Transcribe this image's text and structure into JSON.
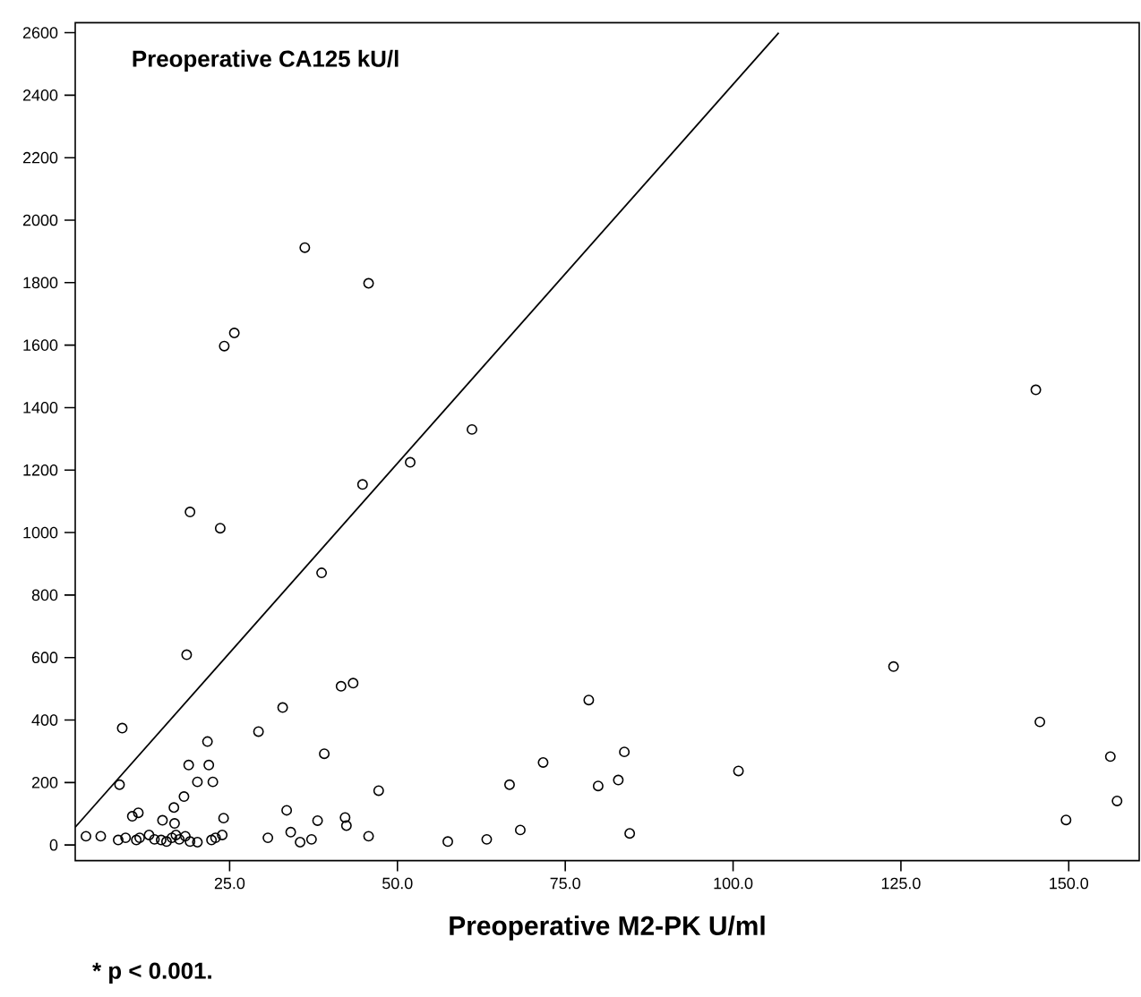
{
  "chart_data": {
    "type": "scatter",
    "ylabel": "Preoperative CA125 kU/l",
    "xlabel": "Preoperative M2-PK U/ml",
    "annotations": [
      "* p < 0.001."
    ],
    "marker": "circle",
    "xlim": [
      2,
      160.5
    ],
    "ylim": [
      -50,
      2632
    ],
    "xticks": [
      {
        "value": 25,
        "label": "25.0"
      },
      {
        "value": 50,
        "label": "50.0"
      },
      {
        "value": 75,
        "label": "75.0"
      },
      {
        "value": 100,
        "label": "100.0"
      },
      {
        "value": 125,
        "label": "125.0"
      },
      {
        "value": 150,
        "label": "150.0"
      }
    ],
    "yticks": [
      0,
      200,
      400,
      600,
      800,
      1000,
      1200,
      1400,
      1600,
      1800,
      2000,
      2200,
      2400,
      2600
    ],
    "series": [
      {
        "color": "#000000",
        "x": [
          36.2,
          45.7,
          24.2,
          25.7,
          61.1,
          51.9,
          44.8,
          19.1,
          23.6,
          38.7,
          145.1,
          18.6,
          9.0,
          8.6,
          21.7,
          18.9,
          21.9,
          20.2,
          22.5,
          18.2,
          16.7,
          10.5,
          11.4,
          32.9,
          29.3,
          39.1,
          41.6,
          43.4,
          47.2,
          33.5,
          24.1,
          38.1,
          42.2,
          15.0,
          123.9,
          78.5,
          145.7,
          83.8,
          71.7,
          156.2,
          66.7,
          79.9,
          82.9,
          100.8,
          157.2,
          149.6,
          3.6,
          5.8,
          42.4,
          30.7,
          34.1,
          35.5,
          37.2,
          45.7,
          57.5,
          63.3,
          68.3,
          84.6,
          8.4,
          9.5,
          11.1,
          11.6,
          13.0,
          13.8,
          14.8,
          15.6,
          16.4,
          17.0,
          17.5,
          18.4,
          19.1,
          20.2,
          22.3,
          22.9,
          23.9,
          16.8
        ],
        "values": [
          1912,
          1798,
          1597,
          1639,
          1330,
          1225,
          1154,
          1066,
          1014,
          871,
          1457,
          609,
          374,
          193,
          331,
          256,
          256,
          202,
          202,
          155,
          120,
          92,
          103,
          440,
          363,
          292,
          508,
          518,
          174,
          111,
          86,
          78,
          88,
          79,
          571,
          464,
          394,
          298,
          264,
          283,
          193,
          189,
          208,
          237,
          141,
          80,
          28,
          28,
          62,
          23,
          41,
          9,
          18,
          28,
          11,
          18,
          48,
          37,
          16,
          23,
          16,
          23,
          32,
          18,
          16,
          11,
          23,
          32,
          18,
          28,
          11,
          9,
          16,
          23,
          32,
          69
        ]
      },
      {
        "type": "line",
        "color": "#000000",
        "line_style": "solid",
        "marker": "none",
        "x": [
          2,
          106.8
        ],
        "values": [
          57,
          2600
        ]
      }
    ]
  }
}
